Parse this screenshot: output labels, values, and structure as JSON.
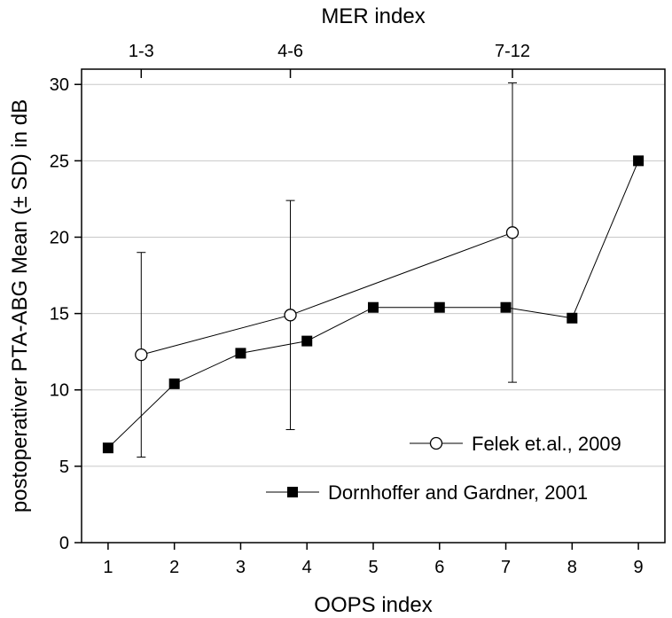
{
  "chart_data": {
    "type": "line",
    "xlabel": "OOPS index",
    "ylabel": "postoperativer PTA-ABG Mean (± SD) in dB",
    "top_axis_label": "MER index",
    "xlim": [
      0.6,
      9.4
    ],
    "ylim": [
      0,
      31
    ],
    "x_ticks": [
      1,
      2,
      3,
      4,
      5,
      6,
      7,
      8,
      9
    ],
    "y_ticks": [
      0,
      5,
      10,
      15,
      20,
      25,
      30
    ],
    "top_ticks": [
      {
        "label": "1-3",
        "x": 1.5
      },
      {
        "label": "4-6",
        "x": 3.75
      },
      {
        "label": "7-12",
        "x": 7.1
      }
    ],
    "grid": "horizontal",
    "legend_position": "bottom-right",
    "series": [
      {
        "name": "Felek et.al., 2009",
        "marker": "open-circle",
        "color": "#000000",
        "x": [
          1.5,
          3.75,
          7.1
        ],
        "y": [
          12.3,
          14.9,
          20.3
        ],
        "error_low": [
          5.6,
          7.4,
          10.5
        ],
        "error_high": [
          19.0,
          22.4,
          30.1
        ]
      },
      {
        "name": "Dornhoffer and Gardner, 2001",
        "marker": "filled-square",
        "color": "#000000",
        "x": [
          1,
          2,
          3,
          4,
          5,
          6,
          7,
          8,
          9
        ],
        "y": [
          6.2,
          10.4,
          12.4,
          13.2,
          15.4,
          15.4,
          15.4,
          14.7,
          25.0
        ]
      }
    ]
  }
}
